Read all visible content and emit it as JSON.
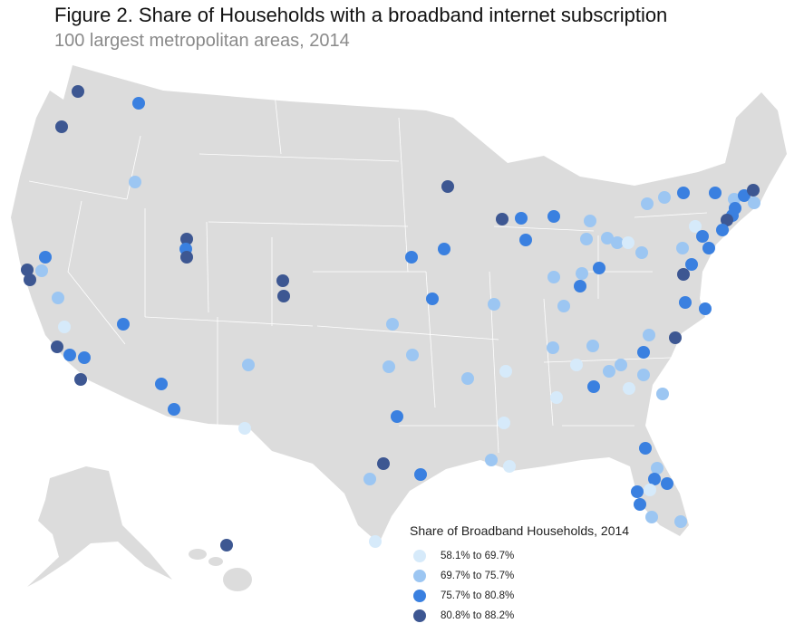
{
  "title": "Figure 2. Share of Households with a broadband internet subscription",
  "subtitle": "100 largest metropolitan areas, 2014",
  "legend": {
    "title": "Share of Broadband Households, 2014",
    "items": [
      {
        "label": "58.1% to 69.7%",
        "color": "#d6eafa"
      },
      {
        "label": "69.7% to 75.7%",
        "color": "#9cc6f2"
      },
      {
        "label": "75.7% to 80.8%",
        "color": "#3a80e0"
      },
      {
        "label": "80.8% to 88.2%",
        "color": "#3d5792"
      }
    ]
  },
  "colors": {
    "land": "#dcdcdc",
    "borders": "#ffffff",
    "background": "#ffffff"
  }
}
